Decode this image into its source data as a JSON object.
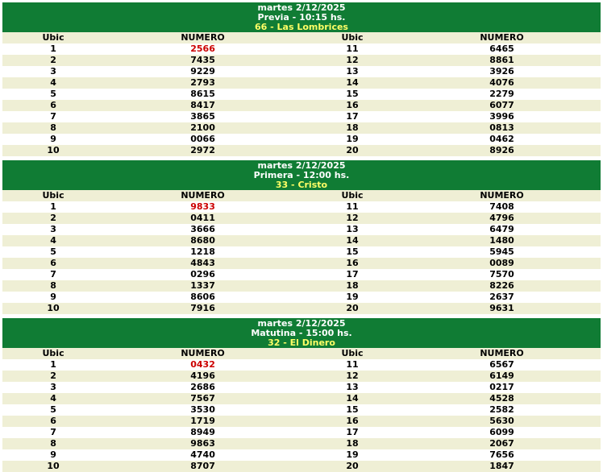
{
  "colors": {
    "header_green": "#107C34",
    "title_white": "#FFFFFF",
    "winner_yellow": "#FFFF66",
    "row_alt": "#EFEFD5",
    "row_plain": "#FFFFFF",
    "text_dark": "#000000",
    "highlight_red": "#CC0000",
    "page_bg": "#FFFFFF"
  },
  "column_headers": [
    "Ubic",
    "NUMERO",
    "Ubic",
    "NUMERO"
  ],
  "draws": [
    {
      "date": "martes 2/12/2025",
      "title": "Previa - 10:15 hs.",
      "winner": "66 - Las Lombrices",
      "rows": [
        [
          "1",
          "2566",
          "11",
          "6465"
        ],
        [
          "2",
          "7435",
          "12",
          "8861"
        ],
        [
          "3",
          "9229",
          "13",
          "3926"
        ],
        [
          "4",
          "2793",
          "14",
          "4076"
        ],
        [
          "5",
          "8615",
          "15",
          "2279"
        ],
        [
          "6",
          "8417",
          "16",
          "6077"
        ],
        [
          "7",
          "3865",
          "17",
          "3996"
        ],
        [
          "8",
          "2100",
          "18",
          "0813"
        ],
        [
          "9",
          "0066",
          "19",
          "0462"
        ],
        [
          "10",
          "2972",
          "20",
          "8926"
        ]
      ]
    },
    {
      "date": "martes 2/12/2025",
      "title": "Primera - 12:00 hs.",
      "winner": "33 - Cristo",
      "rows": [
        [
          "1",
          "9833",
          "11",
          "7408"
        ],
        [
          "2",
          "0411",
          "12",
          "4796"
        ],
        [
          "3",
          "3666",
          "13",
          "6479"
        ],
        [
          "4",
          "8680",
          "14",
          "1480"
        ],
        [
          "5",
          "1218",
          "15",
          "5945"
        ],
        [
          "6",
          "4843",
          "16",
          "0089"
        ],
        [
          "7",
          "0296",
          "17",
          "7570"
        ],
        [
          "8",
          "1337",
          "18",
          "8226"
        ],
        [
          "9",
          "8606",
          "19",
          "2637"
        ],
        [
          "10",
          "7916",
          "20",
          "9631"
        ]
      ]
    },
    {
      "date": "martes 2/12/2025",
      "title": "Matutina - 15:00 hs.",
      "winner": "32 - El Dinero",
      "rows": [
        [
          "1",
          "0432",
          "11",
          "6567"
        ],
        [
          "2",
          "4196",
          "12",
          "6149"
        ],
        [
          "3",
          "2686",
          "13",
          "0217"
        ],
        [
          "4",
          "7567",
          "14",
          "4528"
        ],
        [
          "5",
          "3530",
          "15",
          "2582"
        ],
        [
          "6",
          "1719",
          "16",
          "5630"
        ],
        [
          "7",
          "8949",
          "17",
          "6099"
        ],
        [
          "8",
          "9863",
          "18",
          "2067"
        ],
        [
          "9",
          "4740",
          "19",
          "7656"
        ],
        [
          "10",
          "8707",
          "20",
          "1847"
        ]
      ]
    }
  ]
}
